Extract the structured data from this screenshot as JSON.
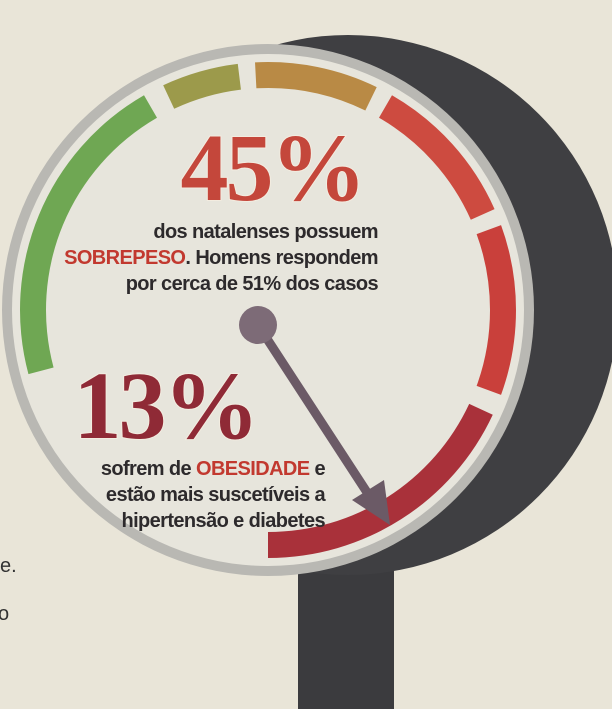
{
  "edge_fragments": [
    "e.",
    "o"
  ],
  "stats": [
    {
      "figure": "45%",
      "lines": [
        [
          "dos natalenses possuem"
        ],
        [
          "SOBREPESO",
          ". Homens respondem"
        ],
        [
          "por cerca de 51% dos casos"
        ]
      ]
    },
    {
      "figure": "13%",
      "lines": [
        [
          "sofrem de ",
          "OBESIDADE",
          " e"
        ],
        [
          "estão mais suscetíveis a"
        ],
        [
          "hipertensão e diabetes"
        ]
      ]
    }
  ]
}
